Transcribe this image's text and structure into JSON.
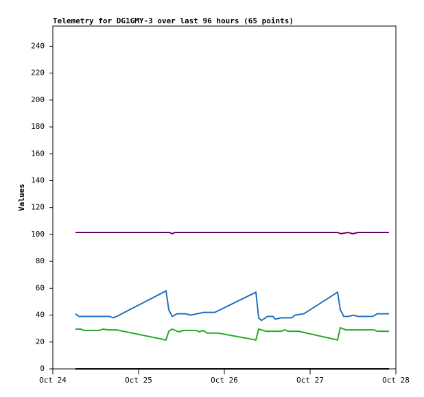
{
  "chart_data": {
    "type": "line",
    "title": "Telemetry for DG1GMY-3 over last 96 hours (65 points)",
    "y_label": "Values",
    "xlim": [
      0,
      4
    ],
    "xticks": [
      {
        "value": 0,
        "label": "Oct 24"
      },
      {
        "value": 1,
        "label": "Oct 25"
      },
      {
        "value": 2,
        "label": "Oct 26"
      },
      {
        "value": 3,
        "label": "Oct 27"
      },
      {
        "value": 4,
        "label": "Oct 28"
      }
    ],
    "ylim": [
      0,
      255
    ],
    "yticks": [
      0,
      20,
      40,
      60,
      80,
      100,
      120,
      140,
      160,
      180,
      200,
      220,
      240
    ],
    "grid": false,
    "series": [
      {
        "color": "#660066",
        "x": [
          0.264,
          1.36,
          1.392,
          1.424,
          3.32,
          3.36,
          3.44,
          3.5,
          3.56,
          3.92
        ],
        "values": [
          101.5,
          101.5,
          100.5,
          101.5,
          101.5,
          100.5,
          101.5,
          100.5,
          101.5,
          101.5
        ]
      },
      {
        "color": "#1f6fbf",
        "x": [
          0.264,
          0.304,
          0.664,
          0.704,
          0.744,
          1.32,
          1.352,
          1.392,
          1.448,
          1.544,
          1.608,
          1.68,
          1.76,
          1.888,
          2.368,
          2.4,
          2.432,
          2.504,
          2.568,
          2.592,
          2.664,
          2.784,
          2.824,
          2.928,
          3.32,
          3.352,
          3.392,
          3.448,
          3.504,
          3.56,
          3.728,
          3.784,
          3.92
        ],
        "values": [
          41,
          39,
          39,
          38,
          39,
          58,
          44,
          39,
          41,
          41,
          40,
          41,
          42,
          42,
          57,
          38,
          36,
          39,
          39,
          37,
          38,
          38,
          40,
          41,
          57,
          44,
          39,
          39,
          40,
          39,
          39,
          41,
          41
        ]
      },
      {
        "color": "#22aa22",
        "x": [
          0.264,
          0.328,
          0.36,
          0.544,
          0.584,
          0.648,
          0.744,
          1.32,
          1.352,
          1.392,
          1.464,
          1.528,
          1.672,
          1.704,
          1.752,
          1.8,
          1.928,
          2.368,
          2.4,
          2.488,
          2.664,
          2.704,
          2.744,
          2.864,
          3.32,
          3.352,
          3.416,
          3.744,
          3.784,
          3.92
        ],
        "values": [
          29.6,
          29.6,
          28.6,
          28.6,
          29.6,
          29,
          29,
          21.5,
          28,
          29.6,
          27.6,
          28.6,
          28.6,
          27.6,
          28.6,
          26.6,
          26.6,
          21.5,
          29.6,
          28,
          28,
          29,
          28,
          28,
          21.5,
          30.6,
          29,
          29,
          28,
          28
        ]
      },
      {
        "color": "#000000",
        "x": [
          0.264,
          3.92
        ],
        "values": [
          0,
          0
        ]
      }
    ]
  }
}
